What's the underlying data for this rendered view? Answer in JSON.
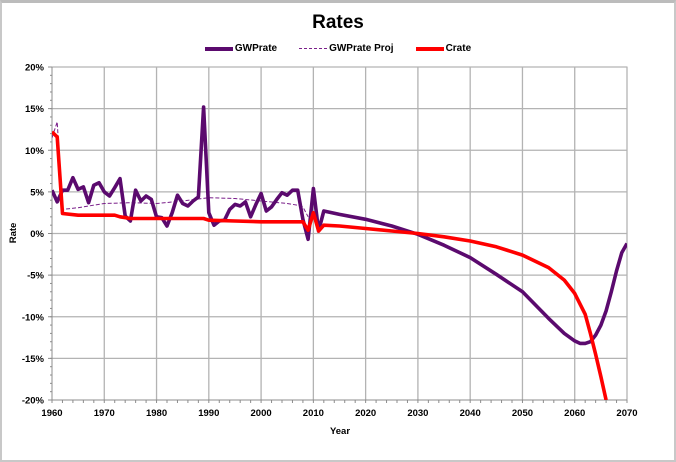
{
  "chart_data": {
    "type": "line",
    "title": "Rates",
    "xlabel": "Year",
    "ylabel": "Rate",
    "xlim": [
      1960,
      2070
    ],
    "ylim": [
      -20,
      20
    ],
    "x_ticks": [
      "1960",
      "1970",
      "1980",
      "1990",
      "2000",
      "2010",
      "2020",
      "2030",
      "2040",
      "2050",
      "2060",
      "2070"
    ],
    "y_ticks": [
      "20%",
      "15%",
      "10%",
      "5%",
      "0%",
      "-5%",
      "-10%",
      "-15%",
      "-20%"
    ],
    "grid": true,
    "legend_position": "top",
    "legend": [
      "GWPrate",
      "GWPrate Proj",
      "Crate"
    ],
    "series": [
      {
        "name": "GWPrate",
        "color": "#5b0a6e",
        "style": "solid",
        "x": [
          1960,
          1961,
          1962,
          1963,
          1964,
          1965,
          1966,
          1967,
          1968,
          1969,
          1970,
          1971,
          1972,
          1973,
          1974,
          1975,
          1976,
          1977,
          1978,
          1979,
          1980,
          1981,
          1982,
          1983,
          1984,
          1985,
          1986,
          1987,
          1988,
          1989,
          1990,
          1991,
          1992,
          1993,
          1994,
          1995,
          1996,
          1997,
          1998,
          1999,
          2000,
          2001,
          2002,
          2003,
          2004,
          2005,
          2006,
          2007,
          2008,
          2009,
          2010,
          2011,
          2012,
          2015,
          2020,
          2025,
          2030,
          2035,
          2040,
          2045,
          2050,
          2055,
          2058,
          2060,
          2061,
          2062,
          2063,
          2064,
          2065,
          2066,
          2067,
          2068,
          2069,
          2070
        ],
        "y": [
          5.2,
          3.8,
          5.2,
          5.2,
          6.7,
          5.3,
          5.6,
          3.7,
          5.8,
          6.1,
          5.0,
          4.5,
          5.5,
          6.6,
          2.1,
          1.5,
          5.2,
          3.9,
          4.5,
          4.1,
          2.0,
          1.9,
          0.9,
          2.5,
          4.6,
          3.6,
          3.3,
          3.9,
          4.4,
          15.2,
          2.5,
          1.0,
          1.5,
          1.6,
          2.9,
          3.5,
          3.3,
          3.8,
          2.0,
          3.5,
          4.8,
          2.7,
          3.2,
          4.1,
          4.9,
          4.6,
          5.2,
          5.2,
          1.7,
          -0.7,
          5.4,
          0.3,
          2.7,
          2.3,
          1.7,
          0.9,
          -0.1,
          -1.4,
          -2.9,
          -4.9,
          -7.0,
          -10.2,
          -12.0,
          -12.9,
          -13.2,
          -13.2,
          -13.0,
          -12.2,
          -11.0,
          -9.3,
          -7.0,
          -4.5,
          -2.3,
          -1.2
        ]
      },
      {
        "name": "GWPrate Proj",
        "color": "#7a1f8a",
        "style": "dashed",
        "x": [
          1960,
          1961,
          1962,
          1965,
          1970,
          1975,
          1980,
          1985,
          1990,
          1995,
          2000,
          2005,
          2007,
          2008,
          2009
        ],
        "y": [
          11.5,
          13.4,
          2.9,
          3.1,
          3.6,
          3.7,
          3.6,
          3.9,
          4.3,
          4.2,
          3.9,
          3.6,
          3.4,
          3.2,
          2.0
        ]
      },
      {
        "name": "Crate",
        "color": "#ff0000",
        "style": "solid",
        "x": [
          1960,
          1961,
          1962,
          1965,
          1970,
          1972,
          1973,
          1975,
          1980,
          1985,
          1988,
          1989,
          1990,
          1995,
          2000,
          2005,
          2007,
          2008,
          2009,
          2010,
          2011,
          2012,
          2015,
          2020,
          2025,
          2030,
          2035,
          2040,
          2045,
          2050,
          2055,
          2058,
          2060,
          2062,
          2063,
          2064,
          2065,
          2066
        ],
        "y": [
          12.2,
          11.6,
          2.4,
          2.2,
          2.2,
          2.2,
          2.0,
          1.8,
          1.8,
          1.8,
          1.8,
          1.8,
          1.6,
          1.5,
          1.4,
          1.4,
          1.4,
          1.4,
          0.4,
          2.5,
          0.3,
          1.0,
          0.9,
          0.6,
          0.3,
          0.0,
          -0.4,
          -0.9,
          -1.6,
          -2.6,
          -4.1,
          -5.6,
          -7.2,
          -9.7,
          -12.0,
          -14.5,
          -17.2,
          -20.0
        ]
      }
    ]
  }
}
